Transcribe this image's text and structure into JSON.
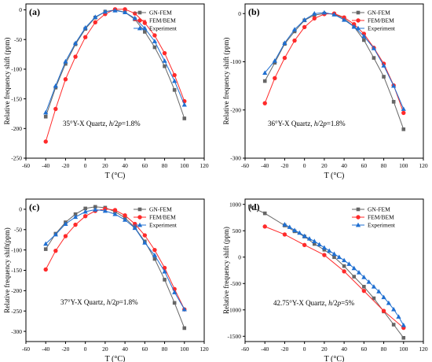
{
  "figure": {
    "background": "#ffffff",
    "series_colors": {
      "GN-FEM": "#666666",
      "FEM/BEM": "#ff2a2a",
      "Experiment": "#1f6fd1"
    },
    "series_markers": {
      "GN-FEM": "square",
      "FEM/BEM": "circle",
      "Experiment": "triangle"
    }
  },
  "chart_data": [
    {
      "type": "line",
      "panel_label": "(a)",
      "annotation": "35°Y-X Quartz, h/2p=1.8%",
      "annotation_parts": {
        "pre": "35°Y-X Quartz, ",
        "italic1": "h",
        "mid": "/2",
        "italic2": "p",
        "post": "=1.8%"
      },
      "xlabel": "T (°C)",
      "ylabel": "Relative frequency shift (ppm)",
      "xlim": [
        -60,
        120
      ],
      "ylim": [
        -250,
        10
      ],
      "xticks": [
        "-60",
        "-40",
        "-20",
        "0",
        "20",
        "40",
        "60",
        "80",
        "100",
        "120"
      ],
      "yticks": [
        "-250",
        "-200",
        "-150",
        "-100",
        "-50",
        "0"
      ],
      "legend": "top-right",
      "series": [
        {
          "name": "GN-FEM",
          "x": [
            -40,
            -30,
            -20,
            -10,
            0,
            10,
            20,
            30,
            40,
            50,
            60,
            70,
            80,
            90,
            100
          ],
          "y": [
            -180,
            -131,
            -91,
            -58,
            -32,
            -13,
            -3,
            0,
            -4,
            -16,
            -37,
            -63,
            -95,
            -135,
            -183
          ]
        },
        {
          "name": "FEM/BEM",
          "x": [
            -40,
            -30,
            -20,
            -10,
            0,
            10,
            20,
            30,
            40,
            50,
            60,
            70,
            80,
            90,
            100
          ],
          "y": [
            -222,
            -167,
            -117,
            -79,
            -46,
            -21,
            -7,
            1,
            1,
            -6,
            -22,
            -43,
            -73,
            -110,
            -154
          ]
        },
        {
          "name": "Experiment",
          "x": [
            -40,
            -30,
            -20,
            -10,
            0,
            10,
            20,
            30,
            40,
            50,
            60,
            70,
            80,
            90,
            100
          ],
          "y": [
            -173,
            -128,
            -87,
            -56,
            -30,
            -12,
            -3,
            -1,
            -4,
            -14,
            -31,
            -53,
            -86,
            -120,
            -160
          ]
        }
      ]
    },
    {
      "type": "line",
      "panel_label": "(b)",
      "annotation": "36°Y-X Quartz, h/2p=1.8%",
      "annotation_parts": {
        "pre": "36°Y-X Quartz, ",
        "italic1": "h",
        "mid": "/2",
        "italic2": "p",
        "post": "=1.8%"
      },
      "xlabel": "T (°C)",
      "ylabel": "Relative frequency shift (ppm)",
      "xlim": [
        -60,
        120
      ],
      "ylim": [
        -300,
        20
      ],
      "xticks": [
        "-60",
        "-40",
        "-20",
        "0",
        "20",
        "40",
        "60",
        "80",
        "100",
        "120"
      ],
      "yticks": [
        "-300",
        "-200",
        "-100",
        "0"
      ],
      "legend": "top-right",
      "series": [
        {
          "name": "GN-FEM",
          "x": [
            -40,
            -30,
            -20,
            -10,
            0,
            10,
            20,
            30,
            40,
            50,
            60,
            70,
            80,
            90,
            100
          ],
          "y": [
            -140,
            -102,
            -63,
            -37,
            -14,
            -3,
            0,
            -1,
            -10,
            -27,
            -55,
            -92,
            -131,
            -183,
            -240
          ]
        },
        {
          "name": "FEM/BEM",
          "x": [
            -40,
            -30,
            -20,
            -10,
            0,
            10,
            20,
            30,
            40,
            50,
            60,
            70,
            80,
            90,
            100
          ],
          "y": [
            -186,
            -134,
            -92,
            -56,
            -28,
            -10,
            -1,
            0,
            -8,
            -22,
            -42,
            -71,
            -104,
            -149,
            -206
          ]
        },
        {
          "name": "Experiment",
          "x": [
            -40,
            -30,
            -20,
            -10,
            0,
            10,
            20,
            30,
            40,
            50,
            60,
            70,
            80,
            90,
            100
          ],
          "y": [
            -123,
            -98,
            -61,
            -33,
            -13,
            0,
            2,
            -2,
            -13,
            -27,
            -47,
            -72,
            -108,
            -150,
            -198
          ]
        }
      ]
    },
    {
      "type": "line",
      "panel_label": "(c)",
      "annotation": "37°Y-X Quartz, h/2p=1.8%",
      "annotation_parts": {
        "pre": "37°Y-X Quartz, ",
        "italic1": "h",
        "mid": "/2",
        "italic2": "p",
        "post": "=1.8%"
      },
      "xlabel": "T (°C)",
      "ylabel": "Relative frequency shift(ppm)",
      "xlim": [
        -60,
        120
      ],
      "ylim": [
        -325,
        25
      ],
      "xticks": [
        "-60",
        "-40",
        "-20",
        "0",
        "20",
        "40",
        "60",
        "80",
        "100",
        "120"
      ],
      "yticks": [
        "-300",
        "-250",
        "-200",
        "-150",
        "-100",
        "-50",
        "0"
      ],
      "legend": "top-right",
      "series": [
        {
          "name": "GN-FEM",
          "x": [
            -40,
            -30,
            -20,
            -10,
            0,
            10,
            20,
            30,
            40,
            50,
            60,
            70,
            80,
            90,
            100
          ],
          "y": [
            -98,
            -60,
            -32,
            -12,
            2,
            6,
            4,
            -6,
            -21,
            -45,
            -79,
            -122,
            -173,
            -230,
            -292
          ]
        },
        {
          "name": "FEM/BEM",
          "x": [
            -40,
            -30,
            -20,
            -10,
            0,
            10,
            20,
            30,
            40,
            50,
            60,
            70,
            80,
            90,
            100
          ],
          "y": [
            -148,
            -102,
            -66,
            -38,
            -17,
            -4,
            1,
            -2,
            -15,
            -36,
            -64,
            -100,
            -144,
            -196,
            -246
          ]
        },
        {
          "name": "Experiment",
          "x": [
            -40,
            -30,
            -20,
            -10,
            0,
            10,
            20,
            30,
            40,
            50,
            60,
            70,
            80,
            90,
            100
          ],
          "y": [
            -85,
            -62,
            -36,
            -19,
            -6,
            -1,
            -4,
            -12,
            -26,
            -46,
            -82,
            -113,
            -153,
            -204,
            -246
          ]
        }
      ]
    },
    {
      "type": "line",
      "panel_label": "(d)",
      "annotation": "42.75°Y-X Quartz, h/2p=5%",
      "annotation_parts": {
        "pre": "42.75°Y-X Quartz, ",
        "italic1": "h",
        "mid": "/2",
        "italic2": "p",
        "post": "=5%"
      },
      "xlabel": "T (°C)",
      "ylabel": "Relative frequency shift (ppm)",
      "xlim": [
        -60,
        120
      ],
      "ylim": [
        -1600,
        1100
      ],
      "xticks": [
        "-60",
        "-40",
        "-20",
        "0",
        "20",
        "40",
        "60",
        "80",
        "100",
        "120"
      ],
      "yticks": [
        "-1500",
        "-1000",
        "-500",
        "0",
        "500",
        "1000"
      ],
      "legend": "top-right",
      "series": [
        {
          "name": "GN-FEM",
          "x": [
            -55,
            -40,
            -20,
            -10,
            0,
            10,
            20,
            30,
            40,
            50,
            60,
            70,
            80,
            90,
            100
          ],
          "y": [
            960,
            830,
            600,
            490,
            390,
            250,
            140,
            0,
            -170,
            -370,
            -560,
            -780,
            -1030,
            -1280,
            -1530
          ]
        },
        {
          "name": "FEM/BEM",
          "x": [
            -40,
            -20,
            0,
            20,
            40,
            60,
            80,
            100
          ],
          "y": [
            580,
            430,
            230,
            40,
            -270,
            -640,
            -1020,
            -1340
          ]
        },
        {
          "name": "Experiment",
          "x": [
            -20,
            -15,
            -10,
            -5,
            0,
            5,
            10,
            15,
            20,
            25,
            30,
            35,
            40,
            45,
            50,
            55,
            60,
            65,
            70,
            75,
            80,
            85,
            90,
            95,
            100
          ],
          "y": [
            620,
            570,
            510,
            460,
            400,
            350,
            300,
            240,
            180,
            120,
            60,
            0,
            -60,
            -130,
            -210,
            -290,
            -380,
            -470,
            -560,
            -650,
            -760,
            -870,
            -990,
            -1130,
            -1290
          ]
        }
      ]
    }
  ]
}
